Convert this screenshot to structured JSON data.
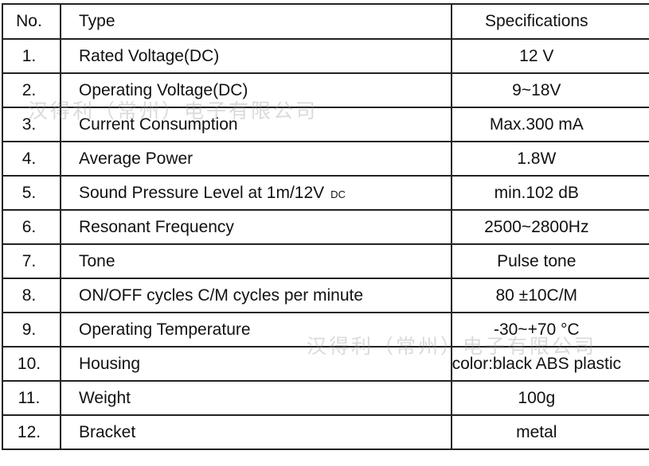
{
  "header": {
    "no": "No.",
    "type": "Type",
    "spec": "Specifications"
  },
  "rows": [
    {
      "no": "1.",
      "type": "Rated  Voltage(DC)",
      "spec": "12 V"
    },
    {
      "no": "2.",
      "type": "Operating Voltage(DC)",
      "spec": "9~18V"
    },
    {
      "no": "3.",
      "type": "Current  Consumption",
      "spec": "Max.300 mA"
    },
    {
      "no": "4.",
      "type": "Average Power",
      "spec": "1.8W"
    },
    {
      "no": "5.",
      "type": "Sound Pressure Level  at 1m/12V",
      "type_suffix": "DC",
      "spec": "min.102 dB"
    },
    {
      "no": "6.",
      "type": "Resonant Frequency",
      "spec": "2500~2800Hz"
    },
    {
      "no": "7.",
      "type": "Tone",
      "spec": "Pulse tone"
    },
    {
      "no": "8.",
      "type": "ON/OFF cycles  C/M cycles per minute",
      "spec": "80  ±10C/M"
    },
    {
      "no": "9.",
      "type": "Operating Temperature",
      "spec": "-30~+70 °C"
    },
    {
      "no": "10.",
      "type": "Housing",
      "spec": "color:black   ABS plastic"
    },
    {
      "no": "11.",
      "type": "Weight",
      "spec": "100g"
    },
    {
      "no": "12.",
      "type": "Bracket",
      "spec": "metal"
    }
  ],
  "watermark": "汉得利（常州）电子有限公司"
}
